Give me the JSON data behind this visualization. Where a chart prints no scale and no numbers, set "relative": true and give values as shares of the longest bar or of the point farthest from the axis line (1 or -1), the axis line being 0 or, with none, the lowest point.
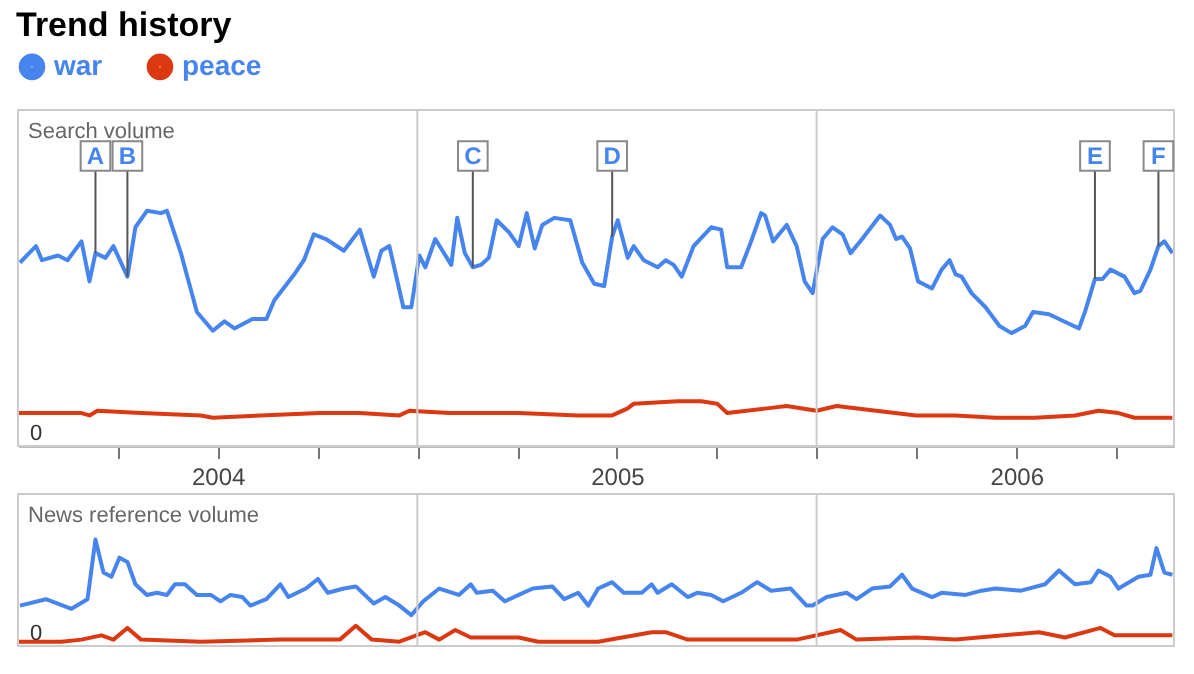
{
  "chart_data": [
    {
      "type": "line",
      "title": "Trend history",
      "ylabel": "Search volume",
      "relative": true,
      "legend": "top left",
      "xlim": [
        2004.0,
        2006.895
      ],
      "xticks": [
        {
          "value": 2004.25,
          "label": null
        },
        {
          "value": 2004.5,
          "label": "2004"
        },
        {
          "value": 2004.75,
          "label": null
        },
        {
          "value": 2005.0,
          "label": null
        },
        {
          "value": 2005.25,
          "label": null
        },
        {
          "value": 2005.5,
          "label": "2005"
        },
        {
          "value": 2005.75,
          "label": null
        },
        {
          "value": 2006.0,
          "label": null
        },
        {
          "value": 2006.25,
          "label": null
        },
        {
          "value": 2006.5,
          "label": "2006"
        },
        {
          "value": 2006.75,
          "label": null
        }
      ],
      "ref_lines": [
        {
          "axis": "x",
          "value": 2005.0,
          "label": null
        },
        {
          "axis": "x",
          "value": 2006.0,
          "label": null
        }
      ],
      "annotations": [
        "0",
        {
          "text": "A",
          "x": 2004.194,
          "y": 0.82
        },
        {
          "text": "B",
          "x": 2004.274,
          "y": 0.72
        },
        {
          "text": "C",
          "x": 2005.139,
          "y": 0.76
        },
        {
          "text": "D",
          "x": 2005.488,
          "y": 0.89
        },
        {
          "text": "E",
          "x": 2006.697,
          "y": 0.71
        },
        {
          "text": "F",
          "x": 2006.856,
          "y": 0.85
        }
      ],
      "series": [
        {
          "name": "war",
          "color": "#4684ee",
          "x": [
            2004.005,
            2004.045,
            2004.06,
            2004.1,
            2004.124,
            2004.159,
            2004.179,
            2004.194,
            2004.219,
            2004.239,
            2004.274,
            2004.294,
            2004.323,
            2004.358,
            2004.373,
            2004.408,
            2004.448,
            2004.488,
            2004.517,
            2004.542,
            2004.587,
            2004.622,
            2004.642,
            2004.692,
            2004.716,
            2004.741,
            2004.771,
            2004.816,
            2004.856,
            2004.891,
            2004.91,
            2004.93,
            2004.965,
            2004.985,
            2005.005,
            2005.02,
            2005.045,
            2005.085,
            2005.1,
            2005.119,
            2005.139,
            2005.159,
            2005.179,
            2005.199,
            2005.229,
            2005.254,
            2005.274,
            2005.294,
            2005.313,
            2005.343,
            2005.383,
            2005.413,
            2005.443,
            2005.468,
            2005.488,
            2005.502,
            2005.527,
            2005.542,
            2005.567,
            2005.602,
            2005.622,
            2005.642,
            2005.662,
            2005.692,
            2005.736,
            2005.761,
            2005.776,
            2005.811,
            2005.836,
            2005.861,
            2005.871,
            2005.891,
            2005.925,
            2005.95,
            2005.97,
            2005.99,
            2006.015,
            2006.04,
            2006.065,
            2006.085,
            2006.114,
            2006.159,
            2006.184,
            2006.199,
            2006.214,
            2006.234,
            2006.254,
            2006.289,
            2006.313,
            2006.333,
            2006.348,
            2006.363,
            2006.388,
            2006.423,
            2006.458,
            2006.488,
            2006.522,
            2006.542,
            2006.582,
            2006.632,
            2006.657,
            2006.672,
            2006.697,
            2006.716,
            2006.736,
            2006.771,
            2006.796,
            2006.811,
            2006.836,
            2006.856,
            2006.871,
            2006.891
          ],
          "values": [
            0.78,
            0.85,
            0.79,
            0.81,
            0.79,
            0.87,
            0.7,
            0.82,
            0.8,
            0.85,
            0.72,
            0.93,
            1.0,
            0.99,
            1.0,
            0.82,
            0.57,
            0.49,
            0.53,
            0.5,
            0.54,
            0.54,
            0.62,
            0.73,
            0.79,
            0.9,
            0.88,
            0.83,
            0.92,
            0.72,
            0.83,
            0.85,
            0.59,
            0.59,
            0.81,
            0.76,
            0.88,
            0.77,
            0.97,
            0.82,
            0.76,
            0.77,
            0.8,
            0.96,
            0.91,
            0.85,
            0.99,
            0.84,
            0.94,
            0.97,
            0.96,
            0.78,
            0.69,
            0.68,
            0.89,
            0.96,
            0.8,
            0.85,
            0.79,
            0.76,
            0.79,
            0.77,
            0.72,
            0.85,
            0.93,
            0.92,
            0.76,
            0.76,
            0.87,
            0.99,
            0.98,
            0.87,
            0.94,
            0.85,
            0.7,
            0.65,
            0.88,
            0.93,
            0.9,
            0.82,
            0.88,
            0.98,
            0.94,
            0.88,
            0.89,
            0.84,
            0.7,
            0.67,
            0.75,
            0.79,
            0.73,
            0.72,
            0.65,
            0.59,
            0.51,
            0.48,
            0.51,
            0.57,
            0.56,
            0.52,
            0.5,
            0.57,
            0.71,
            0.71,
            0.75,
            0.72,
            0.65,
            0.66,
            0.75,
            0.85,
            0.87,
            0.82
          ]
        },
        {
          "name": "peace",
          "color": "#dc3912",
          "x": [
            2004.0,
            2004.159,
            2004.179,
            2004.199,
            2004.308,
            2004.458,
            2004.488,
            2004.607,
            2004.756,
            2004.856,
            2004.955,
            2004.98,
            2005.08,
            2005.254,
            2005.403,
            2005.488,
            2005.527,
            2005.542,
            2005.652,
            2005.711,
            2005.751,
            2005.776,
            2005.876,
            2005.925,
            2006.0,
            2006.05,
            2006.149,
            2006.249,
            2006.348,
            2006.448,
            2006.547,
            2006.647,
            2006.706,
            2006.756,
            2006.796,
            2006.891
          ],
          "values": [
            0.14,
            0.14,
            0.13,
            0.15,
            0.14,
            0.13,
            0.12,
            0.13,
            0.14,
            0.14,
            0.13,
            0.15,
            0.14,
            0.14,
            0.13,
            0.13,
            0.16,
            0.18,
            0.19,
            0.19,
            0.18,
            0.14,
            0.16,
            0.17,
            0.15,
            0.17,
            0.15,
            0.13,
            0.13,
            0.12,
            0.12,
            0.13,
            0.15,
            0.14,
            0.12,
            0.12
          ]
        }
      ]
    },
    {
      "type": "line",
      "ylabel": "News reference volume",
      "relative": true,
      "xlim": [
        2004.0,
        2006.895
      ],
      "ref_lines": [
        {
          "axis": "x",
          "value": 2005.0,
          "label": null
        },
        {
          "axis": "x",
          "value": 2006.0,
          "label": null
        }
      ],
      "annotations": [
        "0"
      ],
      "series": [
        {
          "color": "#4684ee",
          "x": [
            2004.005,
            2004.07,
            2004.134,
            2004.174,
            2004.194,
            2004.214,
            2004.234,
            2004.254,
            2004.274,
            2004.294,
            2004.323,
            2004.348,
            2004.373,
            2004.393,
            2004.418,
            2004.448,
            2004.483,
            2004.507,
            2004.532,
            2004.562,
            2004.582,
            2004.622,
            2004.657,
            2004.677,
            2004.721,
            2004.751,
            2004.776,
            2004.816,
            2004.846,
            2004.891,
            2004.92,
            2004.955,
            2004.985,
            2005.015,
            2005.055,
            2005.104,
            2005.134,
            2005.149,
            2005.189,
            2005.219,
            2005.254,
            2005.289,
            2005.338,
            2005.368,
            2005.403,
            2005.428,
            2005.453,
            2005.488,
            2005.517,
            2005.562,
            2005.587,
            2005.602,
            2005.637,
            2005.677,
            2005.701,
            2005.736,
            2005.766,
            2005.811,
            2005.851,
            2005.886,
            2005.935,
            2005.975,
            2005.99,
            2006.025,
            2006.075,
            2006.1,
            2006.139,
            2006.184,
            2006.214,
            2006.239,
            2006.289,
            2006.313,
            2006.373,
            2006.413,
            2006.448,
            2006.512,
            2006.572,
            2006.607,
            2006.647,
            2006.687,
            2006.706,
            2006.736,
            2006.756,
            2006.806,
            2006.836,
            2006.851,
            2006.871,
            2006.891
          ],
          "values": [
            0.38,
            0.44,
            0.35,
            0.44,
            1.0,
            0.69,
            0.65,
            0.83,
            0.79,
            0.58,
            0.48,
            0.5,
            0.48,
            0.58,
            0.58,
            0.48,
            0.48,
            0.42,
            0.48,
            0.46,
            0.38,
            0.44,
            0.58,
            0.46,
            0.54,
            0.63,
            0.5,
            0.54,
            0.56,
            0.4,
            0.46,
            0.38,
            0.29,
            0.42,
            0.54,
            0.48,
            0.58,
            0.5,
            0.52,
            0.42,
            0.48,
            0.54,
            0.56,
            0.44,
            0.5,
            0.38,
            0.54,
            0.6,
            0.5,
            0.5,
            0.58,
            0.5,
            0.58,
            0.46,
            0.5,
            0.48,
            0.42,
            0.5,
            0.6,
            0.52,
            0.54,
            0.38,
            0.38,
            0.46,
            0.5,
            0.44,
            0.54,
            0.56,
            0.67,
            0.54,
            0.46,
            0.5,
            0.48,
            0.52,
            0.54,
            0.52,
            0.58,
            0.71,
            0.58,
            0.6,
            0.71,
            0.65,
            0.54,
            0.65,
            0.67,
            0.92,
            0.69,
            0.67
          ]
        },
        {
          "color": "#dc3912",
          "x": [
            2004.0,
            2004.109,
            2004.159,
            2004.209,
            2004.239,
            2004.274,
            2004.308,
            2004.458,
            2004.657,
            2004.806,
            2004.846,
            2004.886,
            2004.955,
            2005.02,
            2005.055,
            2005.095,
            2005.134,
            2005.254,
            2005.303,
            2005.453,
            2005.587,
            2005.622,
            2005.677,
            2005.95,
            2006.06,
            2006.1,
            2006.249,
            2006.348,
            2006.557,
            2006.622,
            2006.711,
            2006.746,
            2006.891
          ],
          "values": [
            0.04,
            0.04,
            0.06,
            0.1,
            0.06,
            0.17,
            0.06,
            0.04,
            0.06,
            0.06,
            0.19,
            0.06,
            0.04,
            0.13,
            0.06,
            0.15,
            0.08,
            0.08,
            0.04,
            0.04,
            0.13,
            0.13,
            0.06,
            0.06,
            0.15,
            0.06,
            0.08,
            0.06,
            0.13,
            0.08,
            0.17,
            0.1,
            0.1
          ]
        }
      ]
    }
  ]
}
